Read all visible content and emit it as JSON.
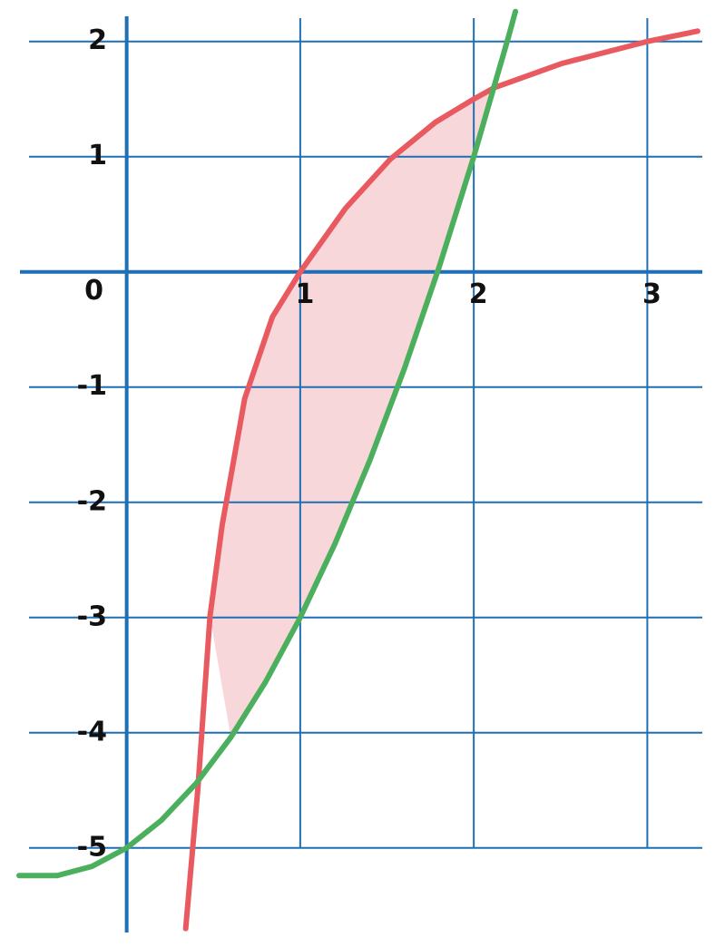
{
  "chart_data": {
    "type": "line",
    "xlim": [
      -0.73,
      3.39
    ],
    "ylim": [
      -5.86,
      2.36
    ],
    "xticks": [
      0,
      1,
      2,
      3
    ],
    "yticks": [
      -5,
      -4,
      -3,
      -2,
      -1,
      1,
      2
    ],
    "grid": true,
    "shade_between": true,
    "shade_color": "#f7d0d4",
    "series": [
      {
        "color": "#e85a60",
        "x": [
          0.34,
          0.41,
          0.48,
          0.55,
          0.68,
          0.84,
          1,
          1.26,
          1.52,
          1.78,
          2,
          2.12,
          2.51,
          3,
          3.29
        ],
        "values": [
          -5.7,
          -4.49,
          -2.99,
          -2.2,
          -1.1,
          -0.39,
          0,
          0.55,
          0.98,
          1.3,
          1.5,
          1.6,
          1.81,
          2.0,
          2.09
        ]
      },
      {
        "color": "#4caf5e",
        "x": [
          -0.62,
          -0.4,
          -0.2,
          0,
          0.2,
          0.4,
          0.6,
          0.8,
          1,
          1.2,
          1.4,
          1.6,
          1.8,
          2,
          2.2,
          2.24
        ],
        "values": [
          -5.24,
          -5.24,
          -5.16,
          -5,
          -4.76,
          -4.44,
          -4.04,
          -3.56,
          -3,
          -2.36,
          -1.64,
          -0.84,
          0.04,
          1,
          2.04,
          2.26
        ]
      }
    ]
  }
}
